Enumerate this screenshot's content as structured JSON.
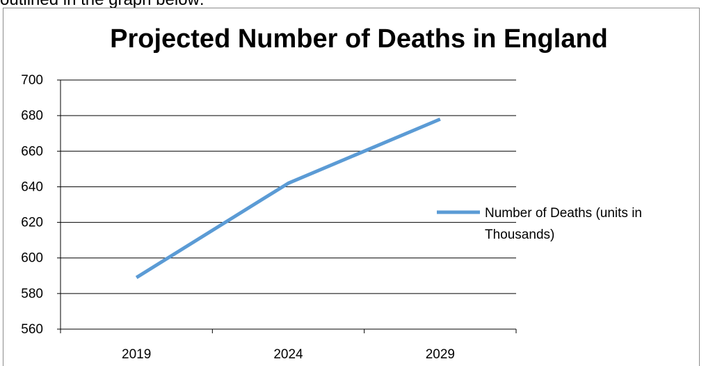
{
  "intro_text": "outlined in the graph below:",
  "chart_data": {
    "type": "line",
    "title": "Projected Number of Deaths in England",
    "xlabel": "",
    "ylabel": "",
    "categories": [
      "2019",
      "2024",
      "2029"
    ],
    "series": [
      {
        "name": "Number of Deaths (units in Thousands)",
        "values": [
          589,
          642,
          678
        ],
        "color": "#5b9bd5"
      }
    ],
    "ylim": [
      560,
      700
    ],
    "yticks": [
      560,
      580,
      600,
      620,
      640,
      660,
      680,
      700
    ],
    "grid": true,
    "legend_position": "right"
  }
}
